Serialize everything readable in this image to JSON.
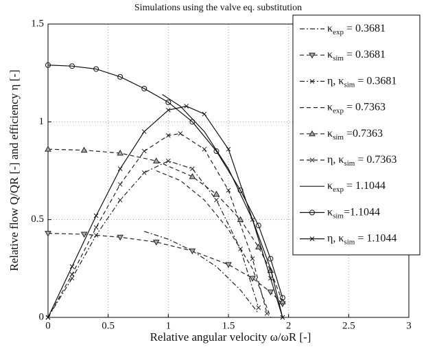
{
  "chart_data": {
    "type": "line",
    "title": "Simulations using the valve eq. substitution",
    "xlabel": "Relative angular velocity ω/ωR [-]",
    "ylabel": "Relative flow Q/QR [-] and efficiency η [-]",
    "xlim": [
      0,
      3
    ],
    "ylim": [
      0,
      1.5
    ],
    "xticks": [
      0,
      0.5,
      1,
      1.5,
      2,
      2.5,
      3
    ],
    "yticks": [
      0,
      0.5,
      1,
      1.5
    ],
    "grid": true,
    "legend": "upper right",
    "series": [
      {
        "name": "κexp = 0.3681",
        "color": "#222",
        "dash": "dashdot",
        "marker": "none",
        "x": [
          0.8,
          1.0,
          1.2,
          1.4,
          1.6,
          1.75
        ],
        "values": [
          0.44,
          0.4,
          0.34,
          0.26,
          0.14,
          0.02
        ]
      },
      {
        "name": "κsim = 0.3681",
        "color": "#222",
        "dash": "dashed",
        "marker": "triangle-down",
        "x": [
          0,
          0.3,
          0.6,
          0.9,
          1.2,
          1.5,
          1.7,
          1.85,
          1.95
        ],
        "values": [
          0.43,
          0.425,
          0.41,
          0.385,
          0.34,
          0.27,
          0.2,
          0.13,
          0.07
        ]
      },
      {
        "name": "η, κsim = 0.3681",
        "color": "#222",
        "dash": "dashdot",
        "marker": "x",
        "x": [
          0,
          0.2,
          0.4,
          0.6,
          0.8,
          1.0,
          1.2,
          1.4,
          1.6,
          1.75
        ],
        "values": [
          0,
          0.2,
          0.42,
          0.6,
          0.74,
          0.8,
          0.76,
          0.6,
          0.35,
          0.05
        ]
      },
      {
        "name": "κexp = 0.7363",
        "color": "#222",
        "dash": "dashed",
        "marker": "none",
        "x": [
          0.9,
          1.1,
          1.3,
          1.5,
          1.7,
          1.85
        ],
        "values": [
          0.75,
          0.7,
          0.6,
          0.45,
          0.25,
          0.0
        ]
      },
      {
        "name": "κsim =0.7363",
        "color": "#222",
        "dash": "dashed",
        "marker": "triangle-up",
        "x": [
          0,
          0.3,
          0.6,
          0.9,
          1.2,
          1.4,
          1.6,
          1.75,
          1.85,
          1.95
        ],
        "values": [
          0.86,
          0.855,
          0.84,
          0.8,
          0.72,
          0.63,
          0.5,
          0.36,
          0.24,
          0.08
        ]
      },
      {
        "name": "η, κsim = 0.7363",
        "color": "#222",
        "dash": "dashed",
        "marker": "x",
        "x": [
          0,
          0.2,
          0.4,
          0.6,
          0.8,
          1.0,
          1.1,
          1.3,
          1.5,
          1.7,
          1.82
        ],
        "values": [
          0,
          0.22,
          0.46,
          0.68,
          0.85,
          0.93,
          0.94,
          0.86,
          0.65,
          0.3,
          0.02
        ]
      },
      {
        "name": "κexp = 1.1044",
        "color": "#111",
        "dash": "solid",
        "marker": "none",
        "x": [
          0.95,
          1.1,
          1.3,
          1.5,
          1.7,
          1.85,
          1.95
        ],
        "values": [
          1.14,
          1.08,
          0.95,
          0.76,
          0.5,
          0.25,
          0.0
        ]
      },
      {
        "name": "κsim=1.1044",
        "color": "#111",
        "dash": "solid",
        "marker": "circle",
        "x": [
          0,
          0.2,
          0.4,
          0.6,
          0.8,
          1.0,
          1.2,
          1.4,
          1.6,
          1.75,
          1.85,
          1.95
        ],
        "values": [
          1.29,
          1.285,
          1.27,
          1.23,
          1.17,
          1.1,
          1.0,
          0.85,
          0.65,
          0.47,
          0.3,
          0.1
        ]
      },
      {
        "name": "η, κsim = 1.1044",
        "color": "#111",
        "dash": "solid",
        "marker": "x",
        "x": [
          0,
          0.2,
          0.4,
          0.6,
          0.8,
          1.0,
          1.15,
          1.3,
          1.5,
          1.7,
          1.85,
          1.95
        ],
        "values": [
          0,
          0.26,
          0.52,
          0.76,
          0.95,
          1.06,
          1.08,
          1.04,
          0.86,
          0.5,
          0.2,
          0
        ]
      }
    ]
  }
}
